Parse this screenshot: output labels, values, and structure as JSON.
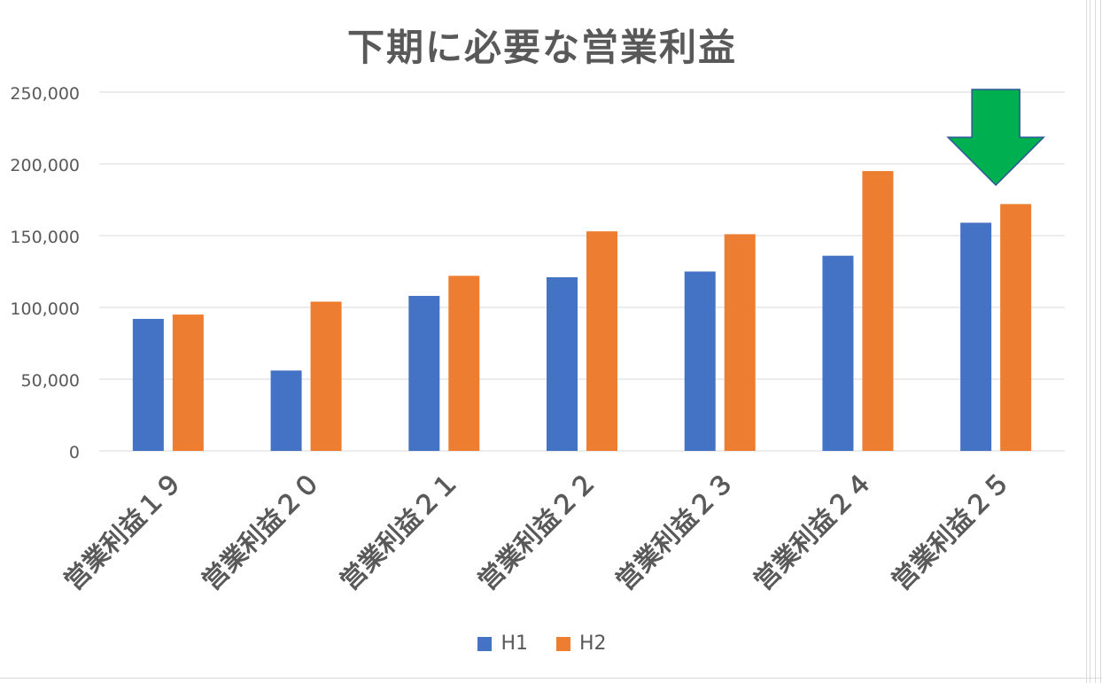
{
  "colors": {
    "h1": "#4472C4",
    "h2": "#ED7D31",
    "arrow_fill": "#00B050",
    "arrow_stroke": "#2F5597",
    "grid": "#D9D9D9",
    "text": "#595959"
  },
  "chart_data": {
    "type": "bar",
    "title": "下期に必要な営業利益",
    "categories": [
      "営業利益１９",
      "営業利益２０",
      "営業利益２１",
      "営業利益２２",
      "営業利益２３",
      "営業利益２４",
      "営業利益２５"
    ],
    "series": [
      {
        "name": "H1",
        "values": [
          92000,
          56000,
          108000,
          121000,
          125000,
          136000,
          159000
        ]
      },
      {
        "name": "H2",
        "values": [
          95000,
          104000,
          122000,
          153000,
          151000,
          195000,
          172000
        ]
      }
    ],
    "ylim": [
      0,
      250000
    ],
    "yticks": [
      {
        "value": 0,
        "label": "0"
      },
      {
        "value": 50000,
        "label": "50,000"
      },
      {
        "value": 100000,
        "label": "100,000"
      },
      {
        "value": 150000,
        "label": "150,000"
      },
      {
        "value": 200000,
        "label": "200,000"
      },
      {
        "value": 250000,
        "label": "250,000"
      }
    ],
    "grid": true,
    "legend": "bottom",
    "annotation": {
      "type": "down-arrow",
      "category": "営業利益２５"
    }
  }
}
